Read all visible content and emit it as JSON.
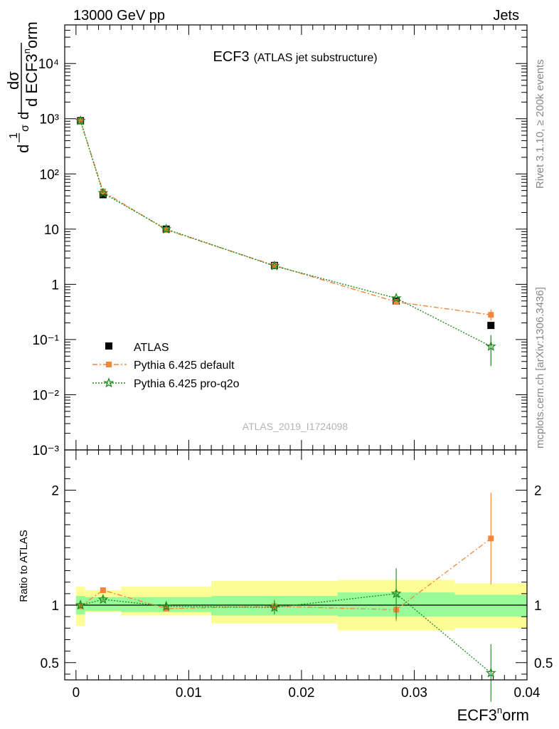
{
  "header": {
    "left": "13000 GeV pp",
    "right": "Jets"
  },
  "title": {
    "main": "ECF3",
    "sub": "(ATLAS jet substructure)"
  },
  "watermark": "ATLAS_2019_I1724098",
  "side_text": {
    "rivet": "Rivet 3.1.10, ≥ 200k events",
    "mcplots": "mcplots.cern.ch [arXiv:1306.3436]"
  },
  "ylabel_main": {
    "frac_num": "1",
    "frac_den": "σ",
    "d1": "d",
    "d2": "d",
    "dsigma": "dσ",
    "den": "d ECF3",
    "sup": "n",
    "tail": "orm"
  },
  "ylabel_ratio": "Ratio to ATLAS",
  "xlabel": {
    "base": "ECF3",
    "sup": "n",
    "tail": "orm"
  },
  "legend": [
    {
      "label": "ATLAS",
      "color": "#000000",
      "marker": "square",
      "line": "none"
    },
    {
      "label": "Pythia 6.425 default",
      "color": "#f4863b",
      "marker": "square",
      "line": "dashdot"
    },
    {
      "label": "Pythia 6.425 pro-q2o",
      "color": "#1e8a1e",
      "marker": "star",
      "line": "dotted"
    }
  ],
  "colors": {
    "band_inner": "#98fb98",
    "band_outer": "#fdfd96",
    "default": "#f4863b",
    "proq2o": "#1e8a1e"
  },
  "chart_data": [
    {
      "type": "line",
      "panel": "main",
      "yscale": "log",
      "ylim": [
        0.001,
        50000
      ],
      "xlim": [
        -0.001,
        0.04
      ],
      "y_ticks": [
        "10⁻³",
        "10⁻²",
        "10⁻¹",
        "1",
        "10",
        "10²",
        "10³",
        "10⁴"
      ],
      "x": [
        0.0004,
        0.0024,
        0.008,
        0.0176,
        0.0284,
        0.0368
      ],
      "series": [
        {
          "name": "ATLAS",
          "values": [
            920,
            42,
            10,
            2.2,
            0.5,
            0.18
          ]
        },
        {
          "name": "Pythia 6.425 default",
          "values": [
            910,
            48,
            9.7,
            2.2,
            0.48,
            0.28
          ]
        },
        {
          "name": "Pythia 6.425 pro-q2o",
          "values": [
            920,
            45,
            10.0,
            2.15,
            0.56,
            0.075
          ]
        }
      ]
    },
    {
      "type": "line",
      "panel": "ratio",
      "ylim": [
        0.35,
        2.35
      ],
      "xlim": [
        -0.001,
        0.04
      ],
      "y_ticks": [
        "0.5",
        "1",
        "2"
      ],
      "x_ticks": [
        "0",
        "0.01",
        "0.02",
        "0.03",
        "0.04"
      ],
      "bins": [
        {
          "x0": 0.0,
          "x1": 0.0008,
          "inner": [
            0.92,
            1.08
          ],
          "outer": [
            0.82,
            1.16
          ]
        },
        {
          "x0": 0.0008,
          "x1": 0.004,
          "inner": [
            0.95,
            1.07
          ],
          "outer": [
            0.94,
            1.13
          ]
        },
        {
          "x0": 0.004,
          "x1": 0.012,
          "inner": [
            0.94,
            1.07
          ],
          "outer": [
            0.91,
            1.16
          ]
        },
        {
          "x0": 0.012,
          "x1": 0.0232,
          "inner": [
            0.91,
            1.08
          ],
          "outer": [
            0.84,
            1.21
          ]
        },
        {
          "x0": 0.0232,
          "x1": 0.0336,
          "inner": [
            0.9,
            1.11
          ],
          "outer": [
            0.78,
            1.22
          ]
        },
        {
          "x0": 0.0336,
          "x1": 0.04,
          "inner": [
            0.9,
            1.09
          ],
          "outer": [
            0.8,
            1.19
          ]
        }
      ],
      "x": [
        0.0004,
        0.0024,
        0.008,
        0.0176,
        0.0284,
        0.0368
      ],
      "series": [
        {
          "name": "Pythia 6.425 default",
          "values": [
            0.99,
            1.13,
            0.97,
            0.99,
            0.96,
            1.58
          ],
          "err": [
            0.02,
            0.02,
            0.02,
            0.06,
            0.1,
            0.4
          ]
        },
        {
          "name": "Pythia 6.425 pro-q2o",
          "values": [
            1.0,
            1.05,
            0.99,
            0.98,
            1.1,
            0.41
          ],
          "err": [
            0.02,
            0.02,
            0.03,
            0.06,
            0.22,
            0.25
          ]
        }
      ]
    }
  ]
}
